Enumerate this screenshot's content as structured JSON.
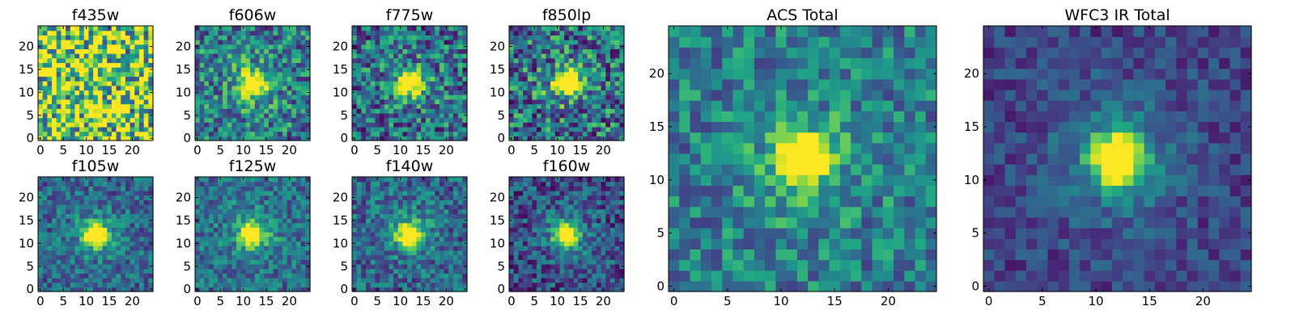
{
  "chart_data": [
    {
      "type": "heatmap",
      "title": "f435w",
      "grid_size": 25,
      "xlim": [
        0,
        24
      ],
      "ylim": [
        0,
        24
      ],
      "xticks": [
        0,
        5,
        10,
        15,
        20
      ],
      "yticks": [
        0,
        5,
        10,
        15,
        20
      ],
      "source_position": [
        12,
        12
      ],
      "peak_level": 0.75,
      "background_level": 0.78,
      "noise_level": 0.55
    },
    {
      "type": "heatmap",
      "title": "f606w",
      "grid_size": 25,
      "xlim": [
        0,
        24
      ],
      "ylim": [
        0,
        24
      ],
      "xticks": [
        0,
        5,
        10,
        15,
        20
      ],
      "yticks": [
        0,
        5,
        10,
        15,
        20
      ],
      "source_position": [
        12,
        12
      ],
      "peak_level": 1.0,
      "background_level": 0.42,
      "noise_level": 0.32
    },
    {
      "type": "heatmap",
      "title": "f775w",
      "grid_size": 25,
      "xlim": [
        0,
        24
      ],
      "ylim": [
        0,
        24
      ],
      "xticks": [
        0,
        5,
        10,
        15,
        20
      ],
      "yticks": [
        0,
        5,
        10,
        15,
        20
      ],
      "source_position": [
        12,
        12
      ],
      "peak_level": 1.0,
      "background_level": 0.36,
      "noise_level": 0.34
    },
    {
      "type": "heatmap",
      "title": "f850lp",
      "grid_size": 25,
      "xlim": [
        0,
        24
      ],
      "ylim": [
        0,
        24
      ],
      "xticks": [
        0,
        5,
        10,
        15,
        20
      ],
      "yticks": [
        0,
        5,
        10,
        15,
        20
      ],
      "source_position": [
        12,
        12
      ],
      "peak_level": 1.0,
      "background_level": 0.38,
      "noise_level": 0.38
    },
    {
      "type": "heatmap",
      "title": "f105w",
      "grid_size": 25,
      "xlim": [
        0,
        24
      ],
      "ylim": [
        0,
        24
      ],
      "xticks": [
        0,
        5,
        10,
        15,
        20
      ],
      "yticks": [
        0,
        5,
        10,
        15,
        20
      ],
      "source_position": [
        12,
        12
      ],
      "peak_level": 1.0,
      "background_level": 0.33,
      "noise_level": 0.22
    },
    {
      "type": "heatmap",
      "title": "f125w",
      "grid_size": 25,
      "xlim": [
        0,
        24
      ],
      "ylim": [
        0,
        24
      ],
      "xticks": [
        0,
        5,
        10,
        15,
        20
      ],
      "yticks": [
        0,
        5,
        10,
        15,
        20
      ],
      "source_position": [
        12,
        12
      ],
      "peak_level": 1.0,
      "background_level": 0.36,
      "noise_level": 0.22
    },
    {
      "type": "heatmap",
      "title": "f140w",
      "grid_size": 25,
      "xlim": [
        0,
        24
      ],
      "ylim": [
        0,
        24
      ],
      "xticks": [
        0,
        5,
        10,
        15,
        20
      ],
      "yticks": [
        0,
        5,
        10,
        15,
        20
      ],
      "source_position": [
        12,
        12
      ],
      "peak_level": 1.0,
      "background_level": 0.32,
      "noise_level": 0.24
    },
    {
      "type": "heatmap",
      "title": "f160w",
      "grid_size": 25,
      "xlim": [
        0,
        24
      ],
      "ylim": [
        0,
        24
      ],
      "xticks": [
        0,
        5,
        10,
        15,
        20
      ],
      "yticks": [
        0,
        5,
        10,
        15,
        20
      ],
      "source_position": [
        12,
        12
      ],
      "peak_level": 1.0,
      "background_level": 0.24,
      "noise_level": 0.24
    },
    {
      "type": "heatmap",
      "title": "ACS Total",
      "grid_size": 25,
      "xlim": [
        0,
        24
      ],
      "ylim": [
        0,
        24
      ],
      "xticks": [
        0,
        5,
        10,
        15,
        20
      ],
      "yticks": [
        0,
        5,
        10,
        15,
        20
      ],
      "source_position": [
        12,
        12
      ],
      "peak_level": 1.0,
      "background_level": 0.42,
      "noise_level": 0.24
    },
    {
      "type": "heatmap",
      "title": "WFC3 IR Total",
      "grid_size": 25,
      "xlim": [
        0,
        24
      ],
      "ylim": [
        0,
        24
      ],
      "xticks": [
        0,
        5,
        10,
        15,
        20
      ],
      "yticks": [
        0,
        5,
        10,
        15,
        20
      ],
      "source_position": [
        12,
        12
      ],
      "peak_level": 1.0,
      "background_level": 0.2,
      "noise_level": 0.14
    }
  ],
  "colormap": "viridis"
}
